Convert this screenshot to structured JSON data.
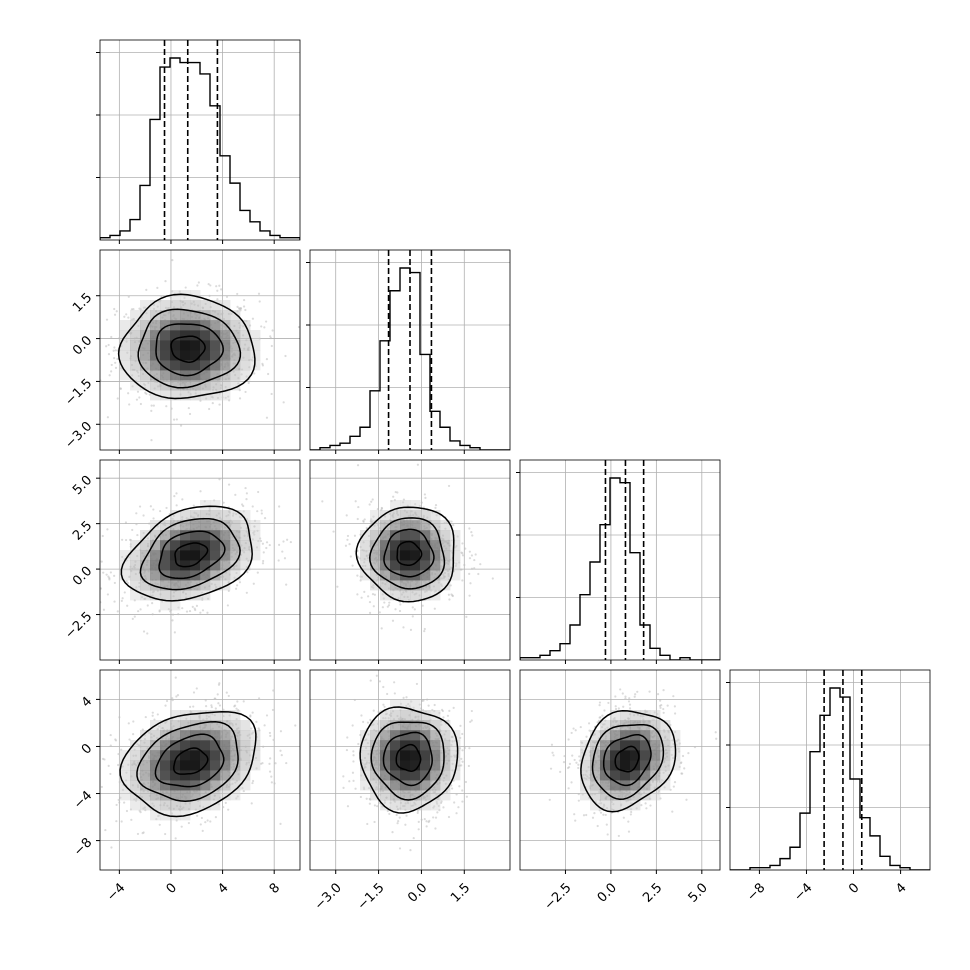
{
  "chart_data": {
    "type": "corner",
    "n_params": 4,
    "grid": true,
    "quantile_lines": "dashed",
    "params": [
      {
        "range": [
          -5.5,
          10
        ],
        "ticks": [
          -4,
          0,
          4,
          8
        ],
        "tick_labels": [
          "−4",
          "0",
          "4",
          "8"
        ]
      },
      {
        "range": [
          -3.9,
          3.1
        ],
        "ticks": [
          -3.0,
          -1.5,
          0.0,
          1.5
        ],
        "tick_labels": [
          "−3.0",
          "−1.5",
          "0.0",
          "1.5"
        ]
      },
      {
        "range": [
          -5.0,
          6.0
        ],
        "ticks": [
          -2.5,
          0.0,
          2.5,
          5.0
        ],
        "tick_labels": [
          "−2.5",
          "0.0",
          "2.5",
          "5.0"
        ]
      },
      {
        "range": [
          -10.5,
          6.5
        ],
        "ticks": [
          -8,
          -4,
          0,
          4
        ],
        "tick_labels": [
          "−8",
          "−4",
          "0",
          "4"
        ]
      }
    ],
    "histograms": [
      {
        "edges_start": -5.5,
        "bin_width": 0.775,
        "counts": [
          1,
          2,
          4,
          9,
          24,
          53,
          76,
          80,
          78,
          78,
          73,
          59,
          37,
          25,
          13,
          8,
          4,
          2,
          1,
          1
        ],
        "quantiles": [
          -0.5,
          1.3,
          3.6
        ]
      },
      {
        "edges_start": -3.9,
        "bin_width": 0.35,
        "counts": [
          0,
          1,
          2,
          3,
          6,
          10,
          26,
          48,
          70,
          80,
          78,
          42,
          17,
          10,
          4,
          2,
          1,
          0,
          0,
          0
        ],
        "quantiles": [
          -1.15,
          -0.4,
          0.35
        ]
      },
      {
        "edges_start": -5.0,
        "bin_width": 0.55,
        "counts": [
          1,
          1,
          2,
          4,
          7,
          15,
          28,
          42,
          58,
          78,
          76,
          46,
          15,
          5,
          2,
          0,
          1,
          0,
          0,
          0
        ],
        "quantiles": [
          -0.3,
          0.8,
          1.8
        ]
      },
      {
        "edges_start": -10.5,
        "bin_width": 0.85,
        "counts": [
          0,
          0,
          1,
          1,
          2,
          5,
          10,
          25,
          52,
          68,
          80,
          76,
          40,
          23,
          15,
          6,
          2,
          1,
          0,
          0
        ],
        "quantiles": [
          -2.5,
          -0.9,
          0.7
        ]
      }
    ],
    "joint_2d": [
      {
        "x": 0,
        "y": 1,
        "center": [
          1.3,
          -0.35
        ],
        "spread": [
          2.6,
          0.9
        ],
        "rho": 0.0
      },
      {
        "x": 0,
        "y": 2,
        "center": [
          1.5,
          0.8
        ],
        "spread": [
          2.5,
          1.3
        ],
        "rho": 0.3
      },
      {
        "x": 1,
        "y": 2,
        "center": [
          -0.45,
          0.85
        ],
        "spread": [
          0.85,
          1.3
        ],
        "rho": 0.0
      },
      {
        "x": 0,
        "y": 3,
        "center": [
          1.5,
          -1.3
        ],
        "spread": [
          2.6,
          2.2
        ],
        "rho": 0.25
      },
      {
        "x": 1,
        "y": 3,
        "center": [
          -0.45,
          -1.0
        ],
        "spread": [
          0.85,
          2.2
        ],
        "rho": 0.0
      },
      {
        "x": 2,
        "y": 3,
        "center": [
          0.9,
          -1.1
        ],
        "spread": [
          1.3,
          2.1
        ],
        "rho": 0.2
      }
    ]
  }
}
